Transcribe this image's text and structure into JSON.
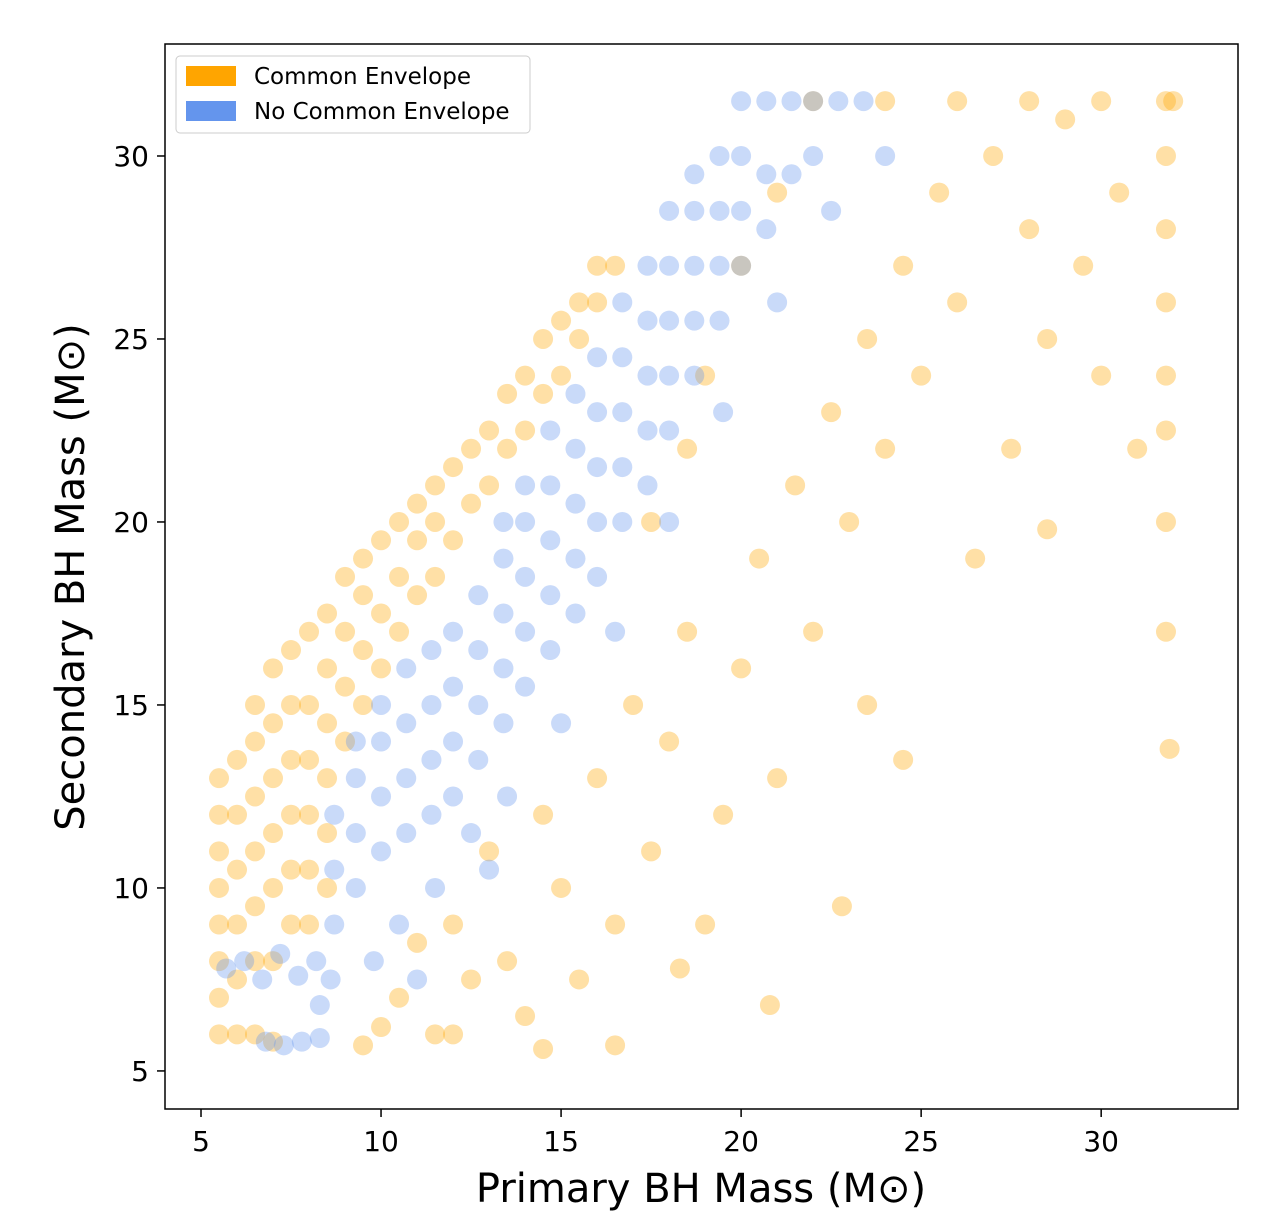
{
  "chart_data": {
    "type": "scatter",
    "x_label": "Primary BH Mass  (M⊙)",
    "y_label": "Secondary BH Mass  (M⊙)",
    "xlim": [
      4.0,
      33.8
    ],
    "ylim": [
      3.96,
      33.06
    ],
    "xticks": [
      5,
      10,
      15,
      20,
      25,
      30
    ],
    "yticks": [
      5,
      10,
      15,
      20,
      25,
      30
    ],
    "grid": false,
    "legend": "upper left",
    "series": [
      {
        "name": "Common Envelope",
        "color": "#ffa500",
        "x": [
          5.5,
          5.5,
          5.5,
          5.5,
          5.5,
          5.5,
          5.5,
          5.5,
          6,
          6,
          6,
          6,
          6,
          6,
          6.5,
          6.5,
          6.5,
          6.5,
          6.5,
          6.5,
          6.5,
          7,
          7,
          7,
          7,
          7,
          7,
          7,
          7.5,
          7.5,
          7.5,
          7.5,
          7.5,
          7.5,
          8,
          8,
          8,
          8,
          8,
          8,
          8.5,
          8.5,
          8.5,
          8.5,
          8.5,
          8.5,
          9,
          9,
          9,
          9,
          9.5,
          9.5,
          9.5,
          9.5,
          10,
          10,
          10,
          10.5,
          10.5,
          10.5,
          11,
          11,
          11,
          11.5,
          11.5,
          11.5,
          12,
          12,
          12.5,
          12.5,
          13,
          13,
          13.5,
          13.5,
          14,
          14,
          14.5,
          14.5,
          15,
          15,
          15.5,
          15.5,
          16,
          16,
          16.5,
          10.5,
          11,
          11.5,
          12,
          12.5,
          13,
          13.5,
          14,
          14.5,
          15,
          15.5,
          16,
          16.5,
          17,
          17.5,
          18,
          18.3,
          18.5,
          19,
          19.5,
          20,
          20.5,
          21,
          21.5,
          22,
          22.5,
          23,
          23.5,
          24,
          24.5,
          25,
          25.5,
          26,
          26.5,
          27,
          27.5,
          28,
          28.5,
          29,
          29.5,
          30,
          30.5,
          31,
          31.8,
          31.8,
          31.8,
          31.8,
          31.8,
          31.8,
          31.8,
          31.8,
          31.9,
          32,
          30,
          28,
          26,
          24,
          22,
          19,
          20,
          21,
          17.5,
          18.5,
          12,
          9.5,
          10,
          14.5,
          16.5,
          22.8,
          24.5,
          28.5,
          20.8,
          23.5
        ],
        "values": [
          6,
          7,
          8,
          9,
          10,
          11,
          12,
          13,
          6,
          7.5,
          9,
          10.5,
          12,
          13.5,
          6,
          8,
          9.5,
          11,
          12.5,
          14,
          15,
          5.8,
          8,
          10,
          11.5,
          13,
          14.5,
          16,
          9,
          10.5,
          12,
          13.5,
          15,
          16.5,
          9,
          10.5,
          12,
          13.5,
          15,
          17,
          10,
          11.5,
          13,
          14.5,
          16,
          17.5,
          14,
          15.5,
          17,
          18.5,
          15,
          16.5,
          18,
          19,
          16,
          17.5,
          19.5,
          17,
          18.5,
          20,
          18,
          19.5,
          20.5,
          18.5,
          20,
          21,
          19.5,
          21.5,
          20.5,
          22,
          21,
          22.5,
          22,
          23.5,
          22.5,
          24,
          23.5,
          25,
          24,
          25.5,
          25,
          26,
          26,
          27,
          27,
          7,
          8.5,
          6,
          9,
          7.5,
          11,
          8,
          6.5,
          12,
          10,
          7.5,
          13,
          9,
          15,
          11,
          14,
          7.8,
          17,
          9,
          12,
          16,
          19,
          13,
          21,
          17,
          23,
          20,
          25,
          22,
          27,
          24,
          29,
          26,
          19,
          30,
          22,
          28,
          25,
          31,
          27,
          24,
          29,
          22,
          31.5,
          30,
          28,
          26,
          24,
          22.5,
          20,
          17,
          13.8,
          31.5,
          31.5,
          31.5,
          31.5,
          31.5,
          31.5,
          24,
          27,
          29,
          20,
          22,
          6,
          5.7,
          6.2,
          5.6,
          5.7,
          9.5,
          13.5,
          19.8,
          6.8,
          15
        ]
      },
      {
        "name": "No Common Envelope",
        "color": "#6495ed",
        "x": [
          5.7,
          6.2,
          6.7,
          7.2,
          7.7,
          8.2,
          6.8,
          7.3,
          7.8,
          8.3,
          8.3,
          8.6,
          8.7,
          8.7,
          8.7,
          9.3,
          9.3,
          9.3,
          9.3,
          10,
          10,
          10,
          10,
          10.7,
          10.7,
          10.7,
          10.7,
          11.4,
          11.4,
          11.4,
          11.4,
          12,
          12,
          12,
          12,
          12.7,
          12.7,
          12.7,
          12.7,
          13.4,
          13.4,
          13.4,
          13.4,
          13.4,
          14,
          14,
          14,
          14,
          14,
          14.7,
          14.7,
          14.7,
          14.7,
          14.7,
          15.4,
          15.4,
          15.4,
          15.4,
          15.4,
          16,
          16,
          16,
          16,
          16,
          16.7,
          16.7,
          16.7,
          16.7,
          16.7,
          17.4,
          17.4,
          17.4,
          17.4,
          17.4,
          18,
          18,
          18,
          18,
          18,
          18.7,
          18.7,
          18.7,
          18.7,
          18.7,
          19.4,
          19.4,
          19.4,
          19.4,
          20,
          20,
          20,
          20,
          20.7,
          20.7,
          20.7,
          21.4,
          21.4,
          22,
          22,
          22.7,
          23.4,
          10.5,
          11.5,
          12.5,
          13.5,
          15,
          16.5,
          18,
          19.5,
          21,
          22.5,
          24,
          11,
          9.8,
          13
        ],
        "values": [
          7.8,
          8,
          7.5,
          8.2,
          7.6,
          8,
          5.8,
          5.7,
          5.8,
          5.9,
          6.8,
          7.5,
          9,
          10.5,
          12,
          10,
          11.5,
          13,
          14,
          11,
          12.5,
          14,
          15,
          11.5,
          13,
          14.5,
          16,
          12,
          13.5,
          15,
          16.5,
          12.5,
          14,
          15.5,
          17,
          13.5,
          15,
          16.5,
          18,
          14.5,
          16,
          17.5,
          19,
          20,
          15.5,
          17,
          18.5,
          20,
          21,
          16.5,
          18,
          19.5,
          21,
          22.5,
          17.5,
          19,
          20.5,
          22,
          23.5,
          18.5,
          20,
          21.5,
          23,
          24.5,
          20,
          21.5,
          23,
          24.5,
          26,
          21,
          22.5,
          24,
          25.5,
          27,
          22.5,
          24,
          25.5,
          27,
          28.5,
          24,
          25.5,
          27,
          28.5,
          29.5,
          25.5,
          27,
          28.5,
          30,
          27,
          28.5,
          30,
          31.5,
          28,
          29.5,
          31.5,
          29.5,
          31.5,
          30,
          31.5,
          31.5,
          31.5,
          9,
          10,
          11.5,
          12.5,
          14.5,
          17,
          20,
          23,
          26,
          28.5,
          30,
          7.5,
          8,
          10.5
        ]
      }
    ]
  }
}
